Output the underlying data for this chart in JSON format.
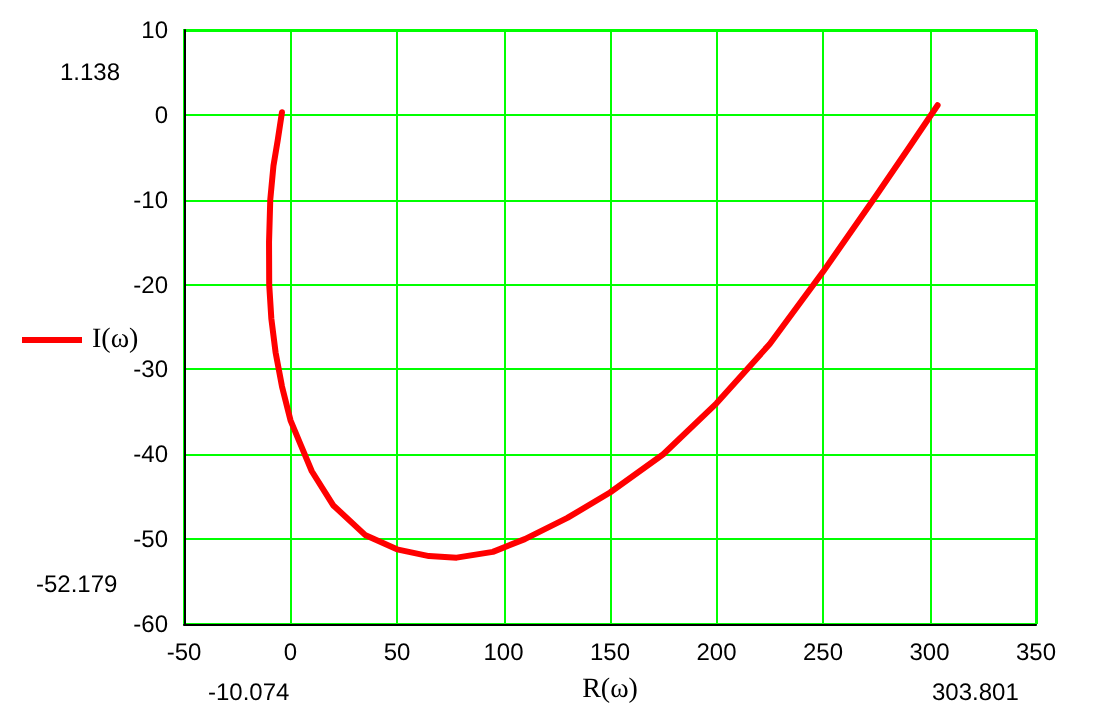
{
  "chart_data": {
    "type": "line",
    "xlabel": "R(ω)",
    "xlim": [
      -50,
      350
    ],
    "ylim": [
      -60,
      10
    ],
    "xticks": [
      -50,
      0,
      50,
      100,
      150,
      200,
      250,
      300,
      350
    ],
    "yticks": [
      -60,
      -50,
      -40,
      -30,
      -20,
      -10,
      0,
      10
    ],
    "grid": true,
    "legend": "left",
    "marker": "none",
    "line_style": "solid",
    "annotations": [
      "1.138",
      "-52.179",
      "-10.074",
      "303.801"
    ],
    "series": [
      {
        "name": "I(ω)",
        "color": "#ff0000",
        "x": [
          -4,
          -6,
          -8,
          -9.5,
          -10.074,
          -10,
          -9,
          -7,
          -4,
          0,
          5,
          10,
          20,
          35,
          50,
          65,
          78,
          95,
          110,
          130,
          150,
          175,
          200,
          225,
          250,
          275,
          290,
          303.801
        ],
        "values": [
          0.3,
          -3,
          -6,
          -10,
          -15,
          -20,
          -24,
          -28,
          -32,
          -36,
          -39,
          -42,
          -46,
          -49.5,
          -51.2,
          -52,
          -52.179,
          -51.5,
          -50,
          -47.5,
          -44.5,
          -40,
          -34,
          -27,
          -18.5,
          -9.5,
          -4,
          1.138
        ]
      }
    ]
  }
}
